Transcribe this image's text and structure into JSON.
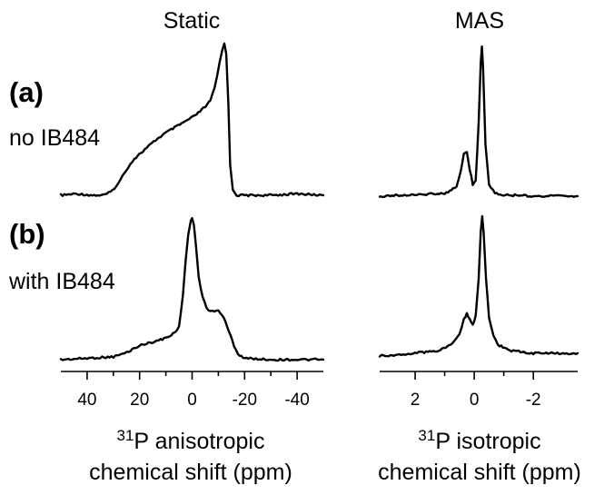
{
  "chart_data": [
    {
      "type": "line",
      "column_title": "Static",
      "x_ticks": [
        40,
        20,
        0,
        -20,
        -40
      ],
      "xlim": [
        50,
        -50
      ],
      "x_label_nucleus": "31",
      "x_label_line1": "P anisotropic",
      "x_label_line2": "chemical shift (ppm)",
      "series": [
        {
          "panel": "a",
          "x": [
            50,
            44,
            38,
            34,
            31,
            28,
            25,
            22,
            18,
            14,
            10,
            6,
            2,
            -1,
            -3,
            -5,
            -7,
            -8.5,
            -9.5,
            -10.5,
            -11.5,
            -12.3,
            -13,
            -13.8,
            -14.5,
            -15.5,
            -17,
            -20,
            -30,
            -40,
            -50
          ],
          "y": [
            0,
            0.01,
            0,
            0,
            0.02,
            0.08,
            0.17,
            0.24,
            0.3,
            0.36,
            0.41,
            0.45,
            0.49,
            0.52,
            0.55,
            0.58,
            0.62,
            0.7,
            0.78,
            0.87,
            0.95,
            1.0,
            0.93,
            0.6,
            0.2,
            0.04,
            0,
            0,
            0,
            0.01,
            0
          ]
        },
        {
          "panel": "b",
          "x": [
            50,
            40,
            30,
            25,
            20,
            16,
            12,
            8,
            5,
            3.5,
            2.5,
            1.5,
            0.5,
            0,
            -0.7,
            -1.5,
            -2.5,
            -4,
            -5.5,
            -7,
            -8.5,
            -10,
            -12,
            -14,
            -16,
            -17.5,
            -20,
            -30,
            -40,
            -50
          ],
          "y": [
            0,
            0.01,
            0.02,
            0.05,
            0.1,
            0.12,
            0.14,
            0.17,
            0.23,
            0.45,
            0.7,
            0.88,
            0.98,
            1.0,
            0.95,
            0.8,
            0.58,
            0.44,
            0.37,
            0.34,
            0.34,
            0.35,
            0.3,
            0.2,
            0.1,
            0.04,
            0.01,
            0,
            0,
            0
          ]
        }
      ]
    },
    {
      "type": "line",
      "column_title": "MAS",
      "x_ticks": [
        2,
        0,
        -2
      ],
      "xlim": [
        3.2,
        -3.5
      ],
      "x_label_nucleus": "31",
      "x_label_line1": "P isotropic",
      "x_label_line2": "chemical shift (ppm)",
      "series": [
        {
          "panel": "a",
          "x": [
            3.2,
            2,
            1,
            0.6,
            0.45,
            0.35,
            0.25,
            0.15,
            0.05,
            -0.05,
            -0.15,
            -0.22,
            -0.26,
            -0.3,
            -0.38,
            -0.5,
            -0.7,
            -1,
            -2,
            -3.5
          ],
          "y": [
            0,
            0.01,
            0.02,
            0.06,
            0.18,
            0.28,
            0.3,
            0.18,
            0.08,
            0.1,
            0.5,
            0.9,
            1.0,
            0.85,
            0.35,
            0.08,
            0.02,
            0.01,
            0,
            0
          ]
        },
        {
          "panel": "b",
          "x": [
            3.2,
            2,
            1.2,
            0.8,
            0.5,
            0.35,
            0.25,
            0.15,
            0.05,
            -0.05,
            -0.15,
            -0.22,
            -0.27,
            -0.32,
            -0.4,
            -0.5,
            -0.65,
            -0.8,
            -1.2,
            -2,
            -3.5
          ],
          "y": [
            0,
            0.02,
            0.04,
            0.08,
            0.16,
            0.26,
            0.3,
            0.26,
            0.22,
            0.28,
            0.55,
            0.88,
            1.0,
            0.88,
            0.55,
            0.28,
            0.14,
            0.08,
            0.04,
            0.02,
            0.02
          ]
        }
      ]
    }
  ],
  "panels": [
    {
      "letter": "(a)",
      "description": "no IB484"
    },
    {
      "letter": "(b)",
      "description": "with IB484"
    }
  ]
}
